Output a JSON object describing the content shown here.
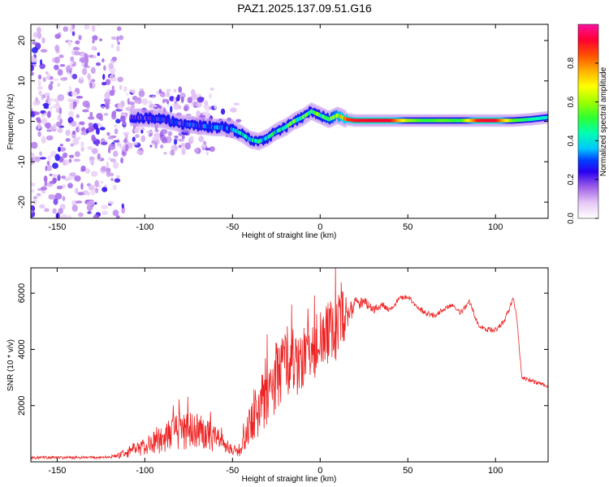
{
  "title": "PAZ1.2025.137.09.51.G16",
  "colors": {
    "snr_line": "#ee2222",
    "axis": "#000000",
    "colormap": [
      "#ffffff",
      "#e6c8f5",
      "#c896f0",
      "#8a2be2",
      "#5b00e0",
      "#0000ff",
      "#00bfff",
      "#00ff7f",
      "#7fff00",
      "#ffff00",
      "#ffa500",
      "#ff0000",
      "#ff1493"
    ]
  },
  "chart_data": [
    {
      "type": "heatmap",
      "title": "",
      "xlabel": "Height of straight line (km)",
      "ylabel": "Frequency (Hz)",
      "xlim": [
        -165,
        130
      ],
      "ylim": [
        -24,
        24
      ],
      "xticks": [
        "-150",
        "-100",
        "-50",
        "0",
        "50",
        "100"
      ],
      "yticks": [
        "-20",
        "-10",
        "0",
        "10",
        "20"
      ],
      "colorbar": {
        "label": "Normalized spectral amplitude",
        "range": [
          0,
          1
        ],
        "ticks": [
          "0.0",
          "0.2",
          "0.4",
          "0.6",
          "0.8"
        ]
      },
      "ridge": {
        "height_km": [
          -105,
          -90,
          -80,
          -70,
          -60,
          -55,
          -50,
          -45,
          -40,
          -35,
          -30,
          -25,
          -20,
          -15,
          -10,
          -5,
          0,
          5,
          10,
          15,
          20,
          30,
          40,
          50,
          60,
          70,
          80,
          90,
          100,
          110,
          120,
          130
        ],
        "frequency_hz": [
          1.0,
          0.5,
          -0.5,
          -1.0,
          -1.5,
          -1.5,
          -2.0,
          -3.0,
          -4.5,
          -5.0,
          -4.0,
          -2.5,
          -1.5,
          0.0,
          1.0,
          2.5,
          1.5,
          0.5,
          1.5,
          0.5,
          0.2,
          0.2,
          0.2,
          0.2,
          0.2,
          0.2,
          0.2,
          0.2,
          0.2,
          0.2,
          0.5,
          1.0
        ],
        "amplitude": [
          0.25,
          0.3,
          0.28,
          0.32,
          0.35,
          0.33,
          0.4,
          0.45,
          0.45,
          0.5,
          0.5,
          0.5,
          0.55,
          0.6,
          0.6,
          0.55,
          0.6,
          0.65,
          0.75,
          0.85,
          0.9,
          0.92,
          0.92,
          0.6,
          0.5,
          0.55,
          0.5,
          0.9,
          0.92,
          0.55,
          0.45,
          0.4
        ]
      }
    },
    {
      "type": "line",
      "title": "",
      "xlabel": "Height of straight line (km)",
      "ylabel": "SNR (10 * v/v)",
      "xlim": [
        -165,
        130
      ],
      "ylim": [
        0,
        6900
      ],
      "xticks": [
        "-150",
        "-100",
        "-50",
        "0",
        "50",
        "100"
      ],
      "yticks": [
        "2000",
        "4000",
        "6000"
      ],
      "series": [
        {
          "name": "SNR",
          "x": [
            -165,
            -150,
            -130,
            -120,
            -110,
            -100,
            -90,
            -80,
            -70,
            -60,
            -55,
            -50,
            -45,
            -40,
            -35,
            -30,
            -25,
            -20,
            -15,
            -10,
            -5,
            0,
            5,
            10,
            15,
            20,
            25,
            30,
            35,
            40,
            45,
            50,
            55,
            60,
            65,
            70,
            75,
            80,
            85,
            90,
            95,
            100,
            105,
            110,
            112,
            115,
            120,
            125,
            130
          ],
          "y": [
            150,
            150,
            150,
            170,
            300,
            550,
            800,
            1100,
            1050,
            850,
            650,
            400,
            450,
            1300,
            2000,
            2600,
            3000,
            3300,
            3500,
            3700,
            3900,
            4300,
            4500,
            5000,
            5200,
            5600,
            5700,
            5400,
            5600,
            5400,
            5800,
            5900,
            5500,
            5300,
            5200,
            5400,
            5600,
            5300,
            5700,
            4900,
            4700,
            4700,
            5000,
            5800,
            5200,
            3000,
            2900,
            2800,
            2700
          ],
          "peak_noise": [
            80,
            80,
            80,
            80,
            150,
            300,
            500,
            700,
            700,
            500,
            300,
            150,
            300,
            800,
            1200,
            1300,
            1300,
            1300,
            1300,
            1200,
            1100,
            1200,
            1300,
            1300,
            800,
            500,
            300,
            250,
            200,
            150,
            150,
            150,
            150,
            150,
            150,
            150,
            150,
            150,
            150,
            150,
            150,
            150,
            150,
            150,
            150,
            120,
            120,
            120,
            120
          ]
        }
      ]
    }
  ]
}
